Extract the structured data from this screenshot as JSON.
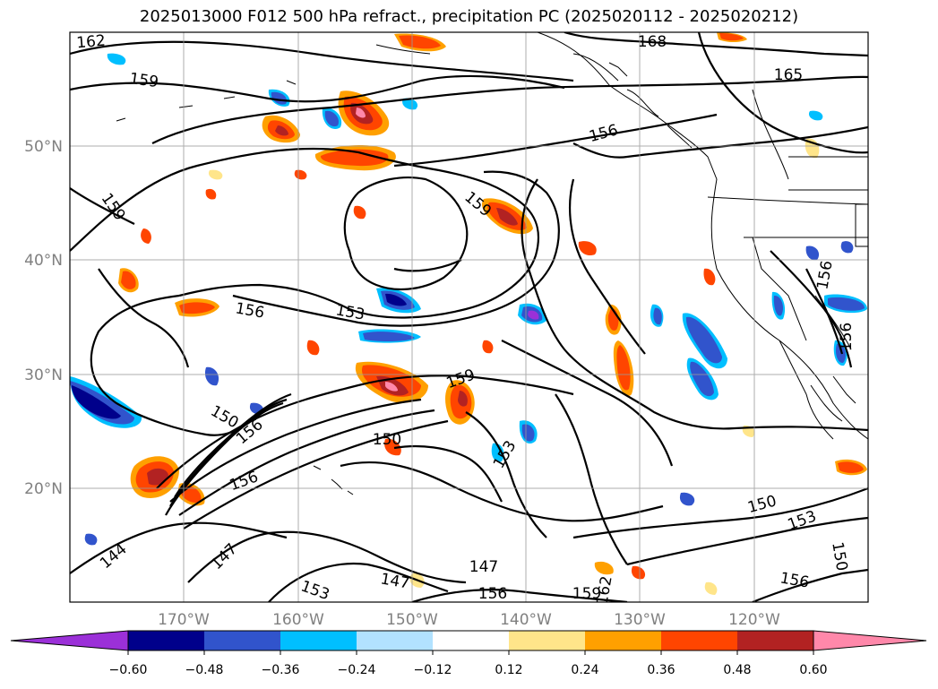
{
  "title": "2025013000 F012 500 hPa refract., precipitation PC (2025020112 - 2025020212)",
  "map": {
    "lon_labels": [
      "170°W",
      "160°W",
      "150°W",
      "140°W",
      "130°W",
      "120°W"
    ],
    "lat_labels": [
      "50°N",
      "40°N",
      "30°N",
      "20°N"
    ],
    "contour_labels": [
      "162",
      "159",
      "168",
      "165",
      "156",
      "159",
      "156",
      "153",
      "159",
      "150",
      "150",
      "153",
      "150",
      "153",
      "156",
      "144",
      "147",
      "147",
      "147",
      "153",
      "156",
      "156",
      "159",
      "162",
      "150",
      "156",
      "156",
      "156",
      "159"
    ]
  },
  "colorbar": {
    "ticks": [
      "−0.60",
      "−0.48",
      "−0.36",
      "−0.24",
      "−0.12",
      "0.12",
      "0.24",
      "0.36",
      "0.48",
      "0.60"
    ],
    "colors": [
      "#9b30d8",
      "#00008b",
      "#3154cc",
      "#00bfff",
      "#b2e2ff",
      "#ffffff",
      "#ffe58a",
      "#ffa000",
      "#ff4500",
      "#b22222",
      "#ff88aa"
    ]
  },
  "colors": {
    "grid": "#9a9a9a",
    "tick_label": "#808080",
    "coast": "#000000"
  }
}
